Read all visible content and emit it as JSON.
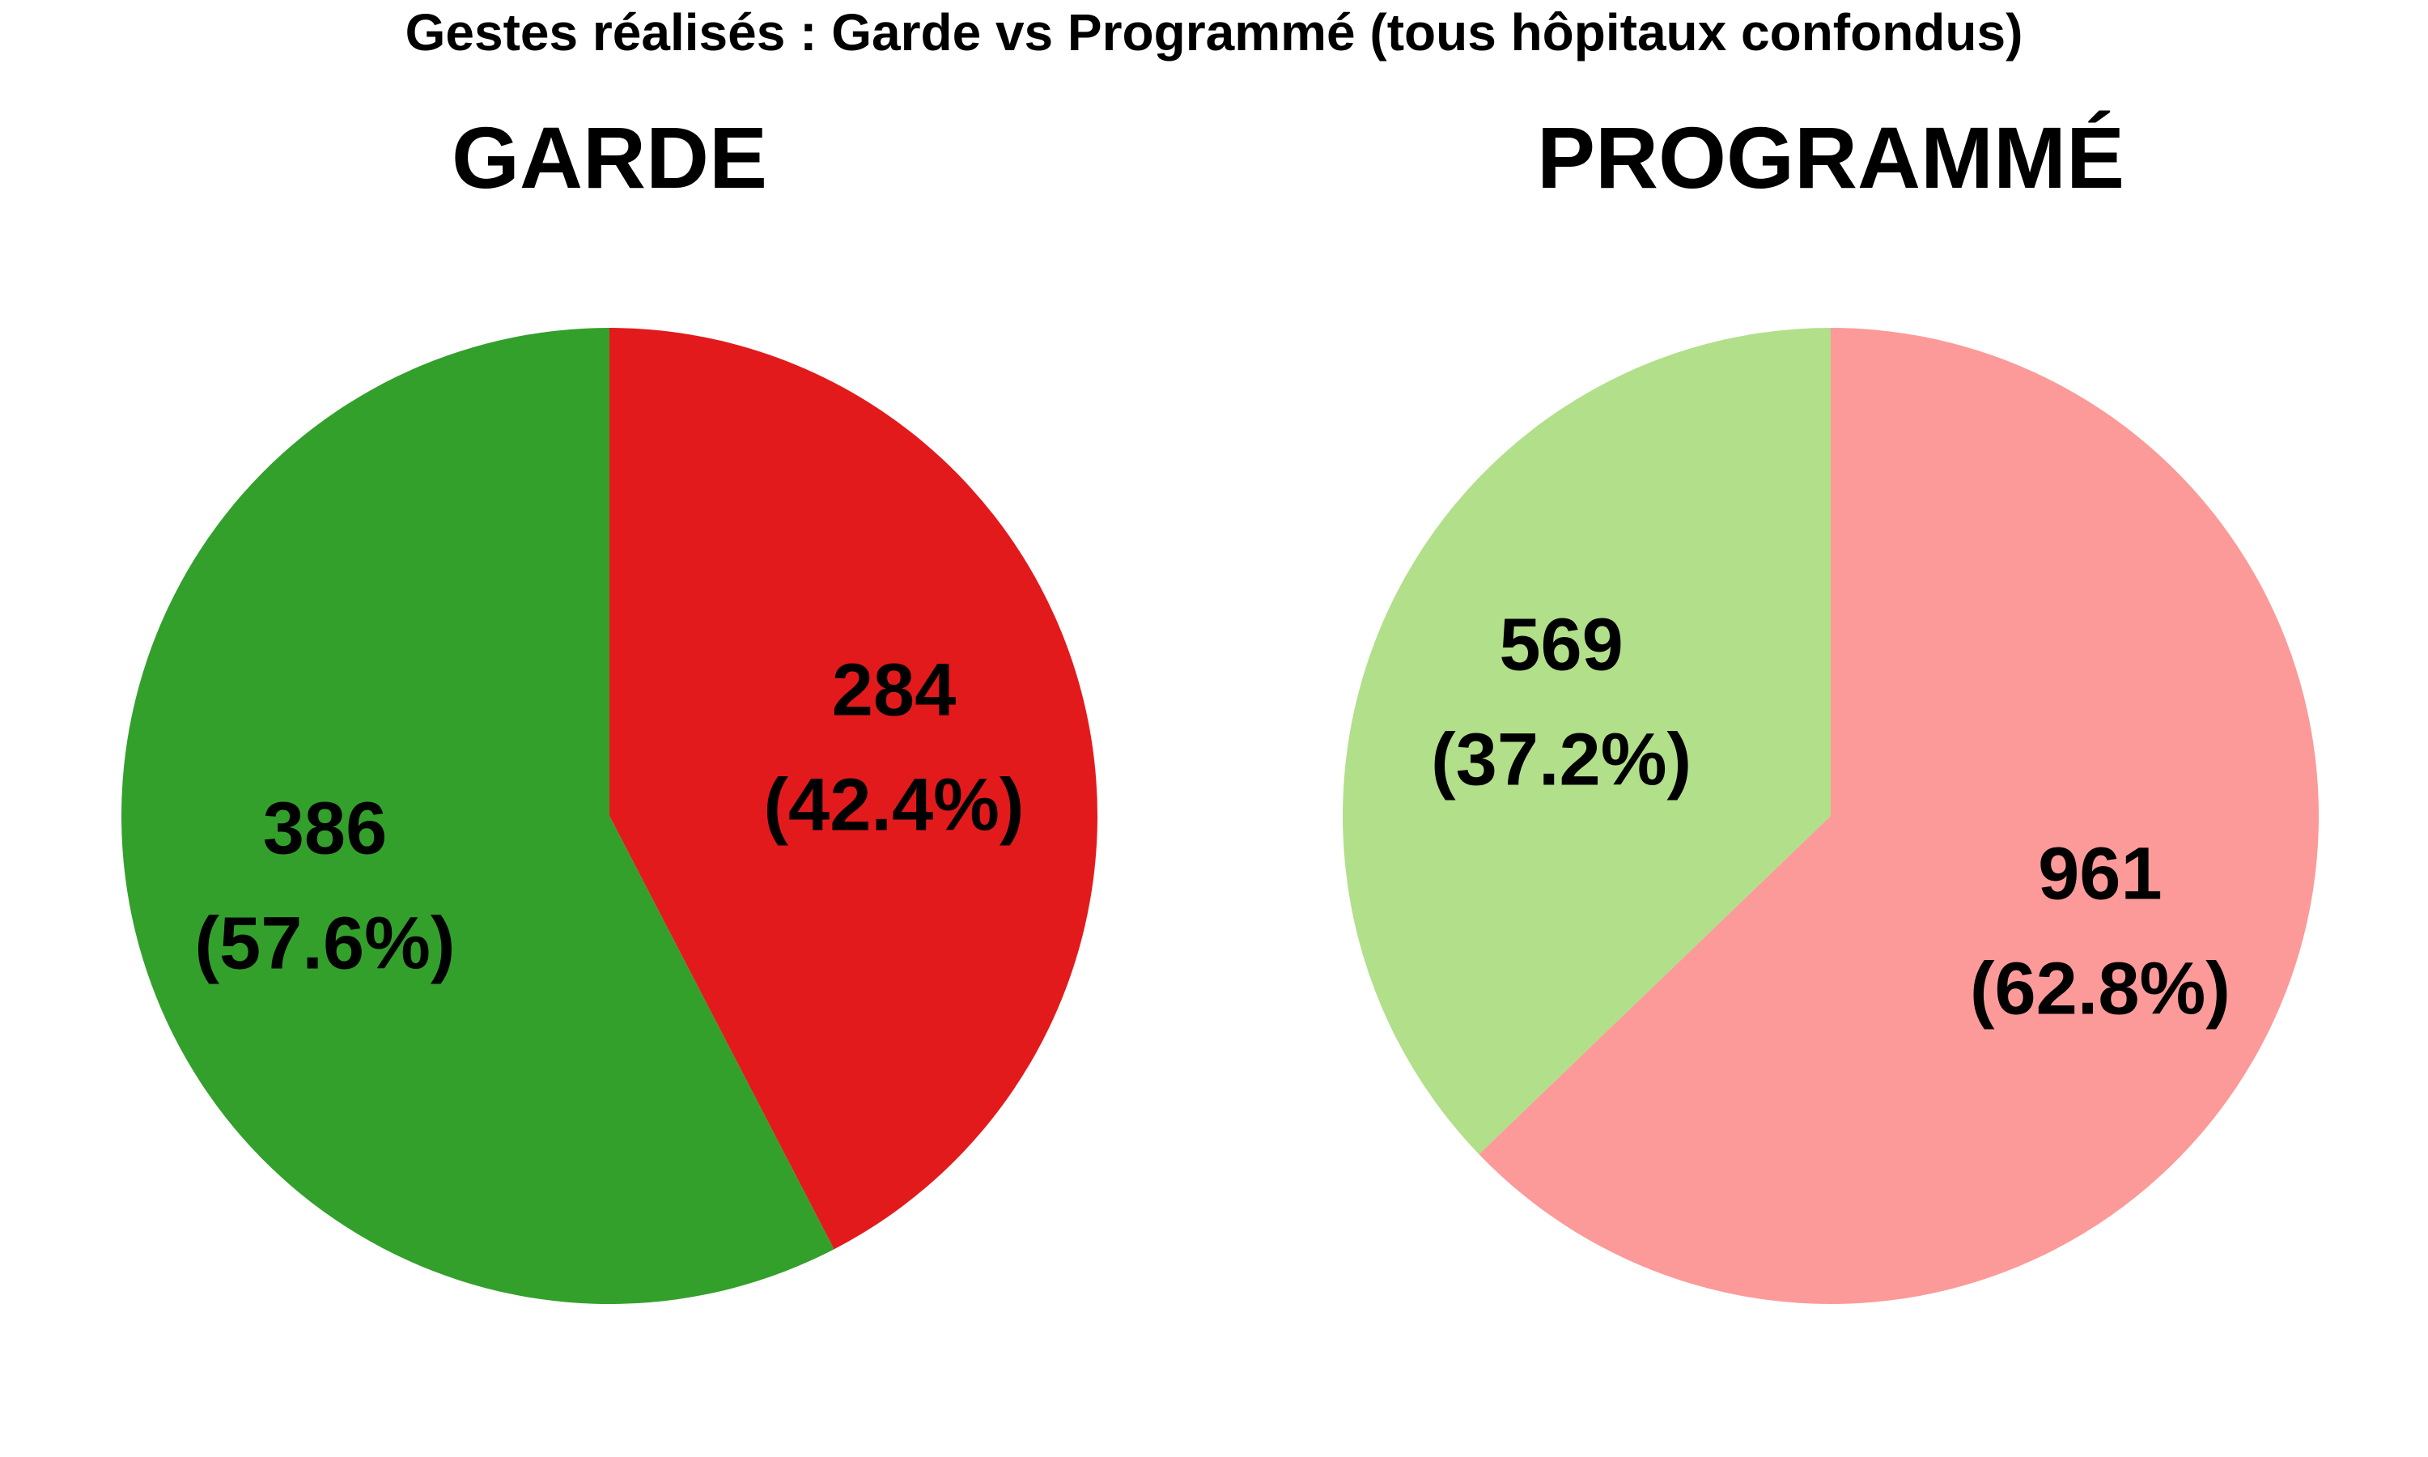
{
  "figure": {
    "title": "Gestes réalisés : Garde vs Programmé (tous hôpitaux confondus)"
  },
  "chart_data": [
    {
      "type": "pie",
      "title": "GARDE",
      "start_angle_deg": 90,
      "direction": "clockwise",
      "slices": [
        {
          "value": 284,
          "percent_label": "(42.4%)",
          "value_label": "284",
          "color": "#e31a1c"
        },
        {
          "value": 386,
          "percent_label": "(57.6%)",
          "value_label": "386",
          "color": "#33a02c"
        }
      ]
    },
    {
      "type": "pie",
      "title": "PROGRAMMÉ",
      "start_angle_deg": 90,
      "direction": "clockwise",
      "slices": [
        {
          "value": 961,
          "percent_label": "(62.8%)",
          "value_label": "961",
          "color": "#fb9a99"
        },
        {
          "value": 569,
          "percent_label": "(37.2%)",
          "value_label": "569",
          "color": "#b2df8a"
        }
      ]
    }
  ]
}
